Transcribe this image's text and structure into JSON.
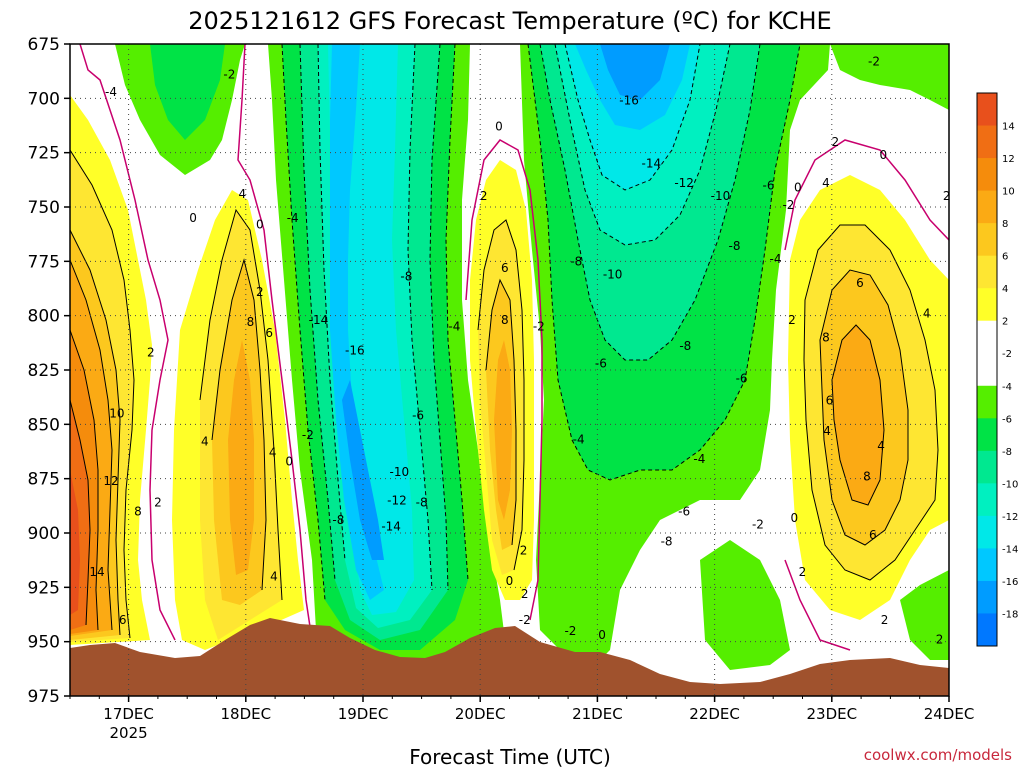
{
  "chart_data": {
    "type": "heatmap",
    "title": "2025121612 GFS Forecast Temperature (ºC) for KCHE",
    "xlabel": "Forecast Time (UTC)",
    "ylabel": "",
    "credit": "coolwx.com/models",
    "y_ticks": [
      "675",
      "700",
      "725",
      "750",
      "775",
      "800",
      "825",
      "850",
      "875",
      "900",
      "925",
      "950",
      "975"
    ],
    "y_range": [
      975,
      675
    ],
    "x_ticks": [
      {
        "label": "17DEC",
        "sub": "2025"
      },
      {
        "label": "18DEC",
        "sub": ""
      },
      {
        "label": "19DEC",
        "sub": ""
      },
      {
        "label": "20DEC",
        "sub": ""
      },
      {
        "label": "21DEC",
        "sub": ""
      },
      {
        "label": "22DEC",
        "sub": ""
      },
      {
        "label": "23DEC",
        "sub": ""
      },
      {
        "label": "24DEC",
        "sub": ""
      }
    ],
    "x_range_days": [
      16.5,
      24.0
    ],
    "colorbar": {
      "labels": [
        "14",
        "12",
        "10",
        "8",
        "6",
        "4",
        "2",
        "-2",
        "-4",
        "-6",
        "-8",
        "-10",
        "-12",
        "-14",
        "-16",
        "-18"
      ],
      "colors": [
        "#e8501c",
        "#f06e14",
        "#f58c0c",
        "#fbaa14",
        "#fcc81e",
        "#fee632",
        "#ffff28",
        "#ffffff",
        "#ffffff",
        "#55ee00",
        "#00e346",
        "#00e890",
        "#00f0c0",
        "#00e8e8",
        "#00c8ff",
        "#009cff",
        "#0078ff"
      ]
    },
    "contour_labels": [
      {
        "t": "-4",
        "d": 16.85,
        "p": 697
      },
      {
        "t": "-2",
        "d": 17.86,
        "p": 689
      },
      {
        "t": "0",
        "d": 17.55,
        "p": 755
      },
      {
        "t": "4",
        "d": 17.97,
        "p": 744
      },
      {
        "t": "0",
        "d": 18.12,
        "p": 758
      },
      {
        "t": "-4",
        "d": 18.4,
        "p": 755
      },
      {
        "t": "2",
        "d": 18.12,
        "p": 789
      },
      {
        "t": "8",
        "d": 18.04,
        "p": 803
      },
      {
        "t": "6",
        "d": 18.2,
        "p": 808
      },
      {
        "t": "2",
        "d": 17.19,
        "p": 817
      },
      {
        "t": "10",
        "d": 16.9,
        "p": 845
      },
      {
        "t": "4",
        "d": 17.65,
        "p": 858
      },
      {
        "t": "4",
        "d": 18.23,
        "p": 863
      },
      {
        "t": "12",
        "d": 16.85,
        "p": 876
      },
      {
        "t": "8",
        "d": 17.08,
        "p": 890
      },
      {
        "t": "2",
        "d": 17.25,
        "p": 886
      },
      {
        "t": "14",
        "d": 16.73,
        "p": 918
      },
      {
        "t": "6",
        "d": 16.95,
        "p": 940
      },
      {
        "t": "4",
        "d": 18.24,
        "p": 920
      },
      {
        "t": "0",
        "d": 18.37,
        "p": 867
      },
      {
        "t": "-2",
        "d": 18.53,
        "p": 855
      },
      {
        "t": "-14",
        "d": 18.62,
        "p": 802
      },
      {
        "t": "-16",
        "d": 18.93,
        "p": 816
      },
      {
        "t": "-8",
        "d": 19.37,
        "p": 782
      },
      {
        "t": "-10",
        "d": 19.31,
        "p": 872
      },
      {
        "t": "-12",
        "d": 19.29,
        "p": 885
      },
      {
        "t": "-8",
        "d": 19.5,
        "p": 886
      },
      {
        "t": "-8",
        "d": 18.79,
        "p": 894
      },
      {
        "t": "-14",
        "d": 19.24,
        "p": 897
      },
      {
        "t": "-6",
        "d": 19.47,
        "p": 846
      },
      {
        "t": "-4",
        "d": 19.78,
        "p": 805
      },
      {
        "t": "0",
        "d": 20.16,
        "p": 713
      },
      {
        "t": "2",
        "d": 20.03,
        "p": 745
      },
      {
        "t": "6",
        "d": 20.21,
        "p": 778
      },
      {
        "t": "8",
        "d": 20.21,
        "p": 802
      },
      {
        "t": "-2",
        "d": 20.5,
        "p": 805
      },
      {
        "t": "2",
        "d": 20.37,
        "p": 908
      },
      {
        "t": "0",
        "d": 20.25,
        "p": 922
      },
      {
        "t": "2",
        "d": 20.38,
        "p": 928
      },
      {
        "t": "-2",
        "d": 20.38,
        "p": 940
      },
      {
        "t": "-2",
        "d": 20.77,
        "p": 945
      },
      {
        "t": "0",
        "d": 21.04,
        "p": 947
      },
      {
        "t": "-4",
        "d": 20.84,
        "p": 857
      },
      {
        "t": "-6",
        "d": 21.03,
        "p": 822
      },
      {
        "t": "-8",
        "d": 20.82,
        "p": 775
      },
      {
        "t": "-10",
        "d": 21.13,
        "p": 781
      },
      {
        "t": "-16",
        "d": 21.27,
        "p": 701
      },
      {
        "t": "-14",
        "d": 21.46,
        "p": 730
      },
      {
        "t": "-12",
        "d": 21.74,
        "p": 739
      },
      {
        "t": "-10",
        "d": 22.05,
        "p": 745
      },
      {
        "t": "-8",
        "d": 22.17,
        "p": 768
      },
      {
        "t": "-8",
        "d": 21.75,
        "p": 814
      },
      {
        "t": "-6",
        "d": 22.23,
        "p": 829
      },
      {
        "t": "-4",
        "d": 21.87,
        "p": 866
      },
      {
        "t": "-6",
        "d": 21.74,
        "p": 890
      },
      {
        "t": "-8",
        "d": 21.59,
        "p": 904
      },
      {
        "t": "-2",
        "d": 22.37,
        "p": 896
      },
      {
        "t": "-6",
        "d": 22.46,
        "p": 740
      },
      {
        "t": "-4",
        "d": 22.52,
        "p": 774
      },
      {
        "t": "-2",
        "d": 22.63,
        "p": 749
      },
      {
        "t": "0",
        "d": 22.71,
        "p": 741
      },
      {
        "t": "4",
        "d": 22.95,
        "p": 739
      },
      {
        "t": "2",
        "d": 23.03,
        "p": 720
      },
      {
        "t": "0",
        "d": 23.44,
        "p": 726
      },
      {
        "t": "-2",
        "d": 23.36,
        "p": 683
      },
      {
        "t": "2",
        "d": 23.98,
        "p": 745
      },
      {
        "t": "6",
        "d": 23.24,
        "p": 785
      },
      {
        "t": "2",
        "d": 22.66,
        "p": 802
      },
      {
        "t": "8",
        "d": 22.95,
        "p": 810
      },
      {
        "t": "4",
        "d": 23.81,
        "p": 799
      },
      {
        "t": "6",
        "d": 22.98,
        "p": 839
      },
      {
        "t": "4",
        "d": 22.96,
        "p": 853
      },
      {
        "t": "4",
        "d": 23.42,
        "p": 860
      },
      {
        "t": "8",
        "d": 23.3,
        "p": 874
      },
      {
        "t": "6",
        "d": 23.35,
        "p": 901
      },
      {
        "t": "0",
        "d": 22.68,
        "p": 893
      },
      {
        "t": "2",
        "d": 22.75,
        "p": 918
      },
      {
        "t": "2",
        "d": 23.45,
        "p": 940
      },
      {
        "t": "2",
        "d": 23.92,
        "p": 949
      }
    ]
  }
}
